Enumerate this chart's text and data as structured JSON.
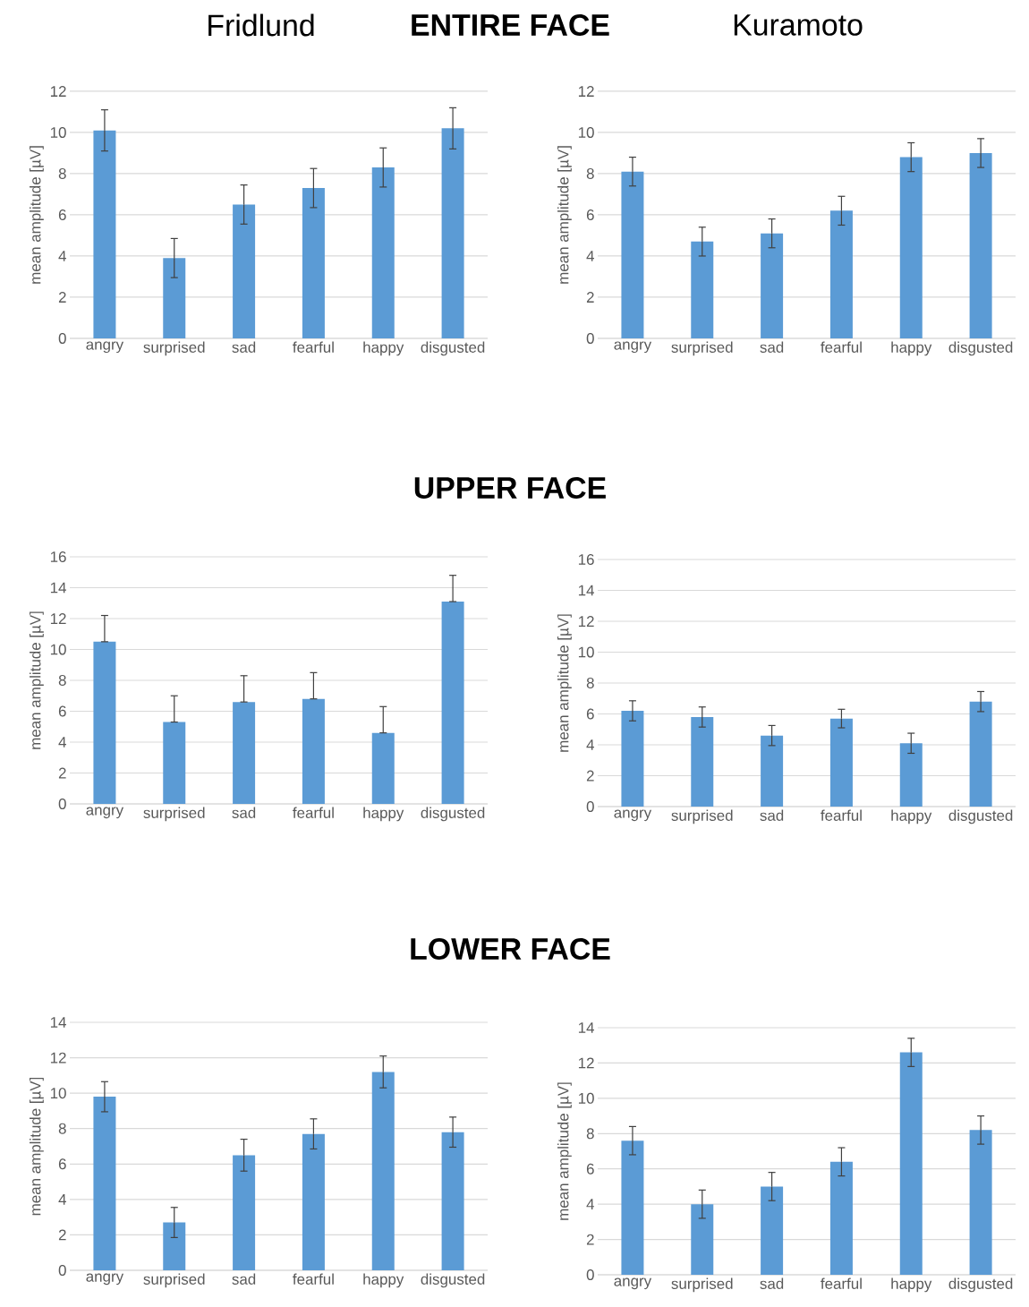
{
  "chart_data": [
    {
      "type": "bar",
      "title": "ENTIRE FACE",
      "subtitle": "Fridlund",
      "ylabel": "mean amplitude [µV]",
      "categories": [
        "angry",
        "surprised",
        "sad",
        "fearful",
        "happy",
        "disgusted"
      ],
      "values": [
        10.1,
        3.9,
        6.5,
        7.3,
        8.3,
        10.2
      ],
      "errors": [
        1.0,
        0.95,
        0.95,
        0.95,
        0.95,
        1.0
      ],
      "color": "#5b9bd5",
      "ylim": [
        0,
        12
      ],
      "yticks": [
        0,
        2,
        4,
        6,
        8,
        10,
        12
      ],
      "grid": "y"
    },
    {
      "type": "bar",
      "subtitle": "Kuramoto",
      "ylabel": "mean amplitude [µV]",
      "categories": [
        "angry",
        "surprised",
        "sad",
        "fearful",
        "happy",
        "disgusted"
      ],
      "values": [
        8.1,
        4.7,
        5.1,
        6.2,
        8.8,
        9.0
      ],
      "errors": [
        0.7,
        0.7,
        0.7,
        0.7,
        0.7,
        0.7
      ],
      "color": "#5b9bd5",
      "ylim": [
        0,
        12
      ],
      "yticks": [
        0,
        2,
        4,
        6,
        8,
        10,
        12
      ],
      "grid": "y"
    },
    {
      "type": "bar",
      "title": "UPPER FACE",
      "ylabel": "mean amplitude [µV]",
      "categories": [
        "angry",
        "surprised",
        "sad",
        "fearful",
        "happy",
        "disgusted"
      ],
      "values": [
        10.5,
        5.3,
        6.6,
        6.8,
        4.6,
        13.1
      ],
      "errors": [
        [
          10.5,
          12.2
        ],
        [
          5.3,
          7.0
        ],
        [
          6.6,
          8.3
        ],
        [
          6.8,
          8.5
        ],
        [
          4.6,
          6.3
        ],
        [
          13.1,
          14.8
        ]
      ],
      "color": "#5b9bd5",
      "ylim": [
        0,
        16
      ],
      "yticks": [
        0,
        2,
        4,
        6,
        8,
        10,
        12,
        14,
        16
      ],
      "grid": "y"
    },
    {
      "type": "bar",
      "ylabel": "mean amplitude [µV]",
      "categories": [
        "angry",
        "surprised",
        "sad",
        "fearful",
        "happy",
        "disgusted"
      ],
      "values": [
        6.2,
        5.8,
        4.6,
        5.7,
        4.1,
        6.8
      ],
      "errors": [
        0.65,
        0.65,
        0.65,
        0.6,
        0.65,
        0.65
      ],
      "color": "#5b9bd5",
      "ylim": [
        0,
        16
      ],
      "yticks": [
        0,
        2,
        4,
        6,
        8,
        10,
        12,
        14,
        16
      ],
      "grid": "y"
    },
    {
      "type": "bar",
      "title": "LOWER FACE",
      "ylabel": "mean amplitude [µV]",
      "categories": [
        "angry",
        "surprised",
        "sad",
        "fearful",
        "happy",
        "disgusted"
      ],
      "values": [
        9.8,
        2.7,
        6.5,
        7.7,
        11.2,
        7.8
      ],
      "errors": [
        0.85,
        0.85,
        0.9,
        0.85,
        0.9,
        0.85
      ],
      "color": "#5b9bd5",
      "ylim": [
        0,
        14
      ],
      "yticks": [
        0,
        2,
        4,
        6,
        8,
        10,
        12,
        14
      ],
      "grid": "y"
    },
    {
      "type": "bar",
      "ylabel": "mean amplitude [µV]",
      "categories": [
        "angry",
        "surprised",
        "sad",
        "fearful",
        "happy",
        "disgusted"
      ],
      "values": [
        7.6,
        4.0,
        5.0,
        6.4,
        12.6,
        8.2
      ],
      "errors": [
        0.8,
        0.8,
        0.8,
        0.8,
        0.8,
        0.8
      ],
      "color": "#5b9bd5",
      "ylim": [
        0,
        14
      ],
      "yticks": [
        0,
        2,
        4,
        6,
        8,
        10,
        12,
        14
      ],
      "grid": "y"
    }
  ]
}
